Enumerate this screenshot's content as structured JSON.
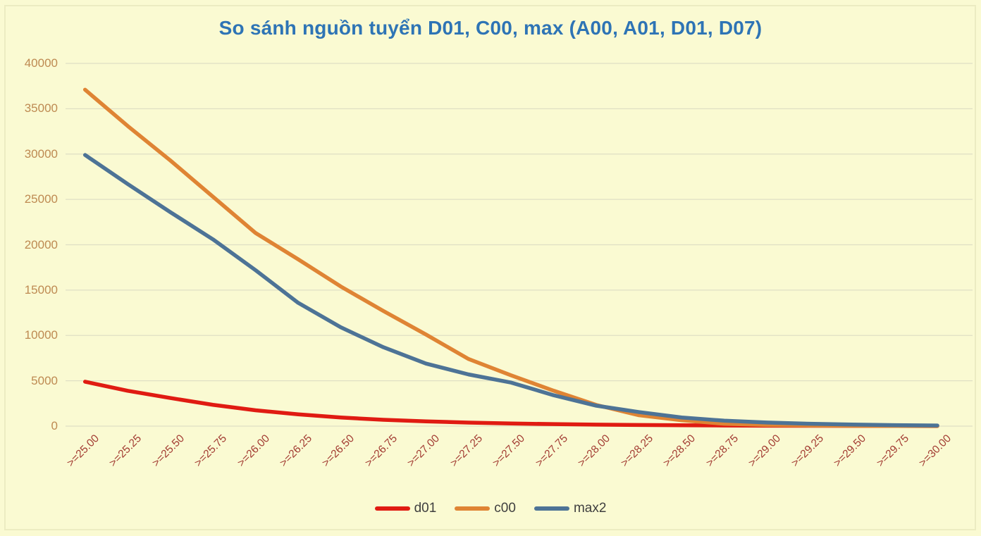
{
  "title": {
    "text": "So sánh nguồn tuyển D01, C00, max (A00, A01, D01, D07)",
    "color": "#2E74B5"
  },
  "colors": {
    "background": "#FAFAD2",
    "frame_border": "#ECECC2",
    "gridline": "#DFDFC4",
    "y_tick_label": "#BE8A52",
    "x_tick_label": "#A23B32",
    "legend_text": "#3F3F3F"
  },
  "chart_data": {
    "type": "line",
    "title": "So sánh nguồn tuyển D01, C00, max (A00, A01, D01, D07)",
    "categories": [
      ">=25.00",
      ">=25.25",
      ">=25.50",
      ">=25.75",
      ">=26.00",
      ">=26.25",
      ">=26.50",
      ">=26.75",
      ">=27.00",
      ">=27.25",
      ">=27.50",
      ">=27.75",
      ">=28.00",
      ">=28.25",
      ">=28.50",
      ">=28.75",
      ">=29.00",
      ">=29.25",
      ">=29.50",
      ">=29.75",
      ">=30.00"
    ],
    "series": [
      {
        "name": "d01",
        "color": "#E01B12",
        "values": [
          4900,
          3900,
          3100,
          2350,
          1750,
          1300,
          950,
          700,
          520,
          390,
          290,
          220,
          165,
          125,
          95,
          70,
          50,
          35,
          25,
          18,
          12
        ]
      },
      {
        "name": "c00",
        "color": "#DF8434",
        "values": [
          37100,
          33100,
          29300,
          25300,
          21300,
          18400,
          15400,
          12700,
          10100,
          7400,
          5600,
          3900,
          2330,
          1200,
          650,
          260,
          130,
          70,
          40,
          20,
          10
        ]
      },
      {
        "name": "max2",
        "color": "#4D7396",
        "values": [
          29900,
          26700,
          23600,
          20600,
          17200,
          13600,
          10900,
          8700,
          6900,
          5700,
          4800,
          3400,
          2250,
          1550,
          950,
          600,
          400,
          260,
          170,
          110,
          70
        ]
      }
    ],
    "xlabel": "",
    "ylabel": "",
    "ylim": [
      0,
      40000
    ],
    "y_tick_step": 5000,
    "grid": true,
    "legend_position": "bottom",
    "x_label_rotation_deg": 45
  }
}
